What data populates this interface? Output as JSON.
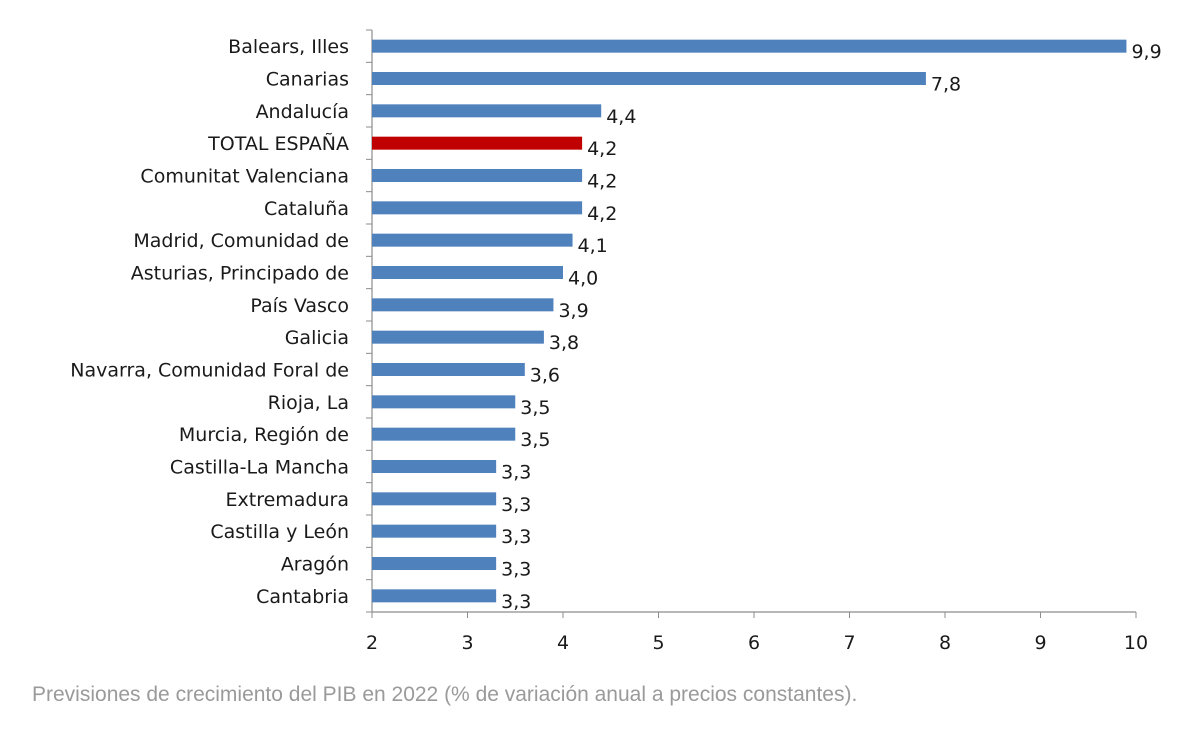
{
  "caption": "Previsiones de crecimiento del PIB en 2022 (% de variación anual a precios constantes).",
  "chart_data": {
    "type": "bar",
    "orientation": "horizontal",
    "categories": [
      "Balears, Illes",
      "Canarias",
      "Andalucía",
      "TOTAL ESPAÑA",
      "Comunitat Valenciana",
      "Cataluña",
      "Madrid, Comunidad de",
      "Asturias, Principado de",
      "País Vasco",
      "Galicia",
      "Navarra, Comunidad Foral de",
      "Rioja, La",
      "Murcia, Región de",
      "Castilla-La Mancha",
      "Extremadura",
      "Castilla y León",
      "Aragón",
      "Cantabria"
    ],
    "values": [
      9.9,
      7.8,
      4.4,
      4.2,
      4.2,
      4.2,
      4.1,
      4.0,
      3.9,
      3.8,
      3.6,
      3.5,
      3.5,
      3.3,
      3.3,
      3.3,
      3.3,
      3.3
    ],
    "value_labels": [
      "9,9",
      "7,8",
      "4,4",
      "4,2",
      "4,2",
      "4,2",
      "4,1",
      "4,0",
      "3,9",
      "3,8",
      "3,6",
      "3,5",
      "3,5",
      "3,3",
      "3,3",
      "3,3",
      "3,3",
      "3,3"
    ],
    "xlim": [
      2,
      10
    ],
    "xticks": [
      2,
      3,
      4,
      5,
      6,
      7,
      8,
      9,
      10
    ],
    "bar_color": "#4f81bd",
    "highlight_category": "TOTAL ESPAÑA",
    "highlight_color": "#c00000",
    "grid": false,
    "legend": "none",
    "title": "",
    "xlabel": "",
    "ylabel": ""
  }
}
